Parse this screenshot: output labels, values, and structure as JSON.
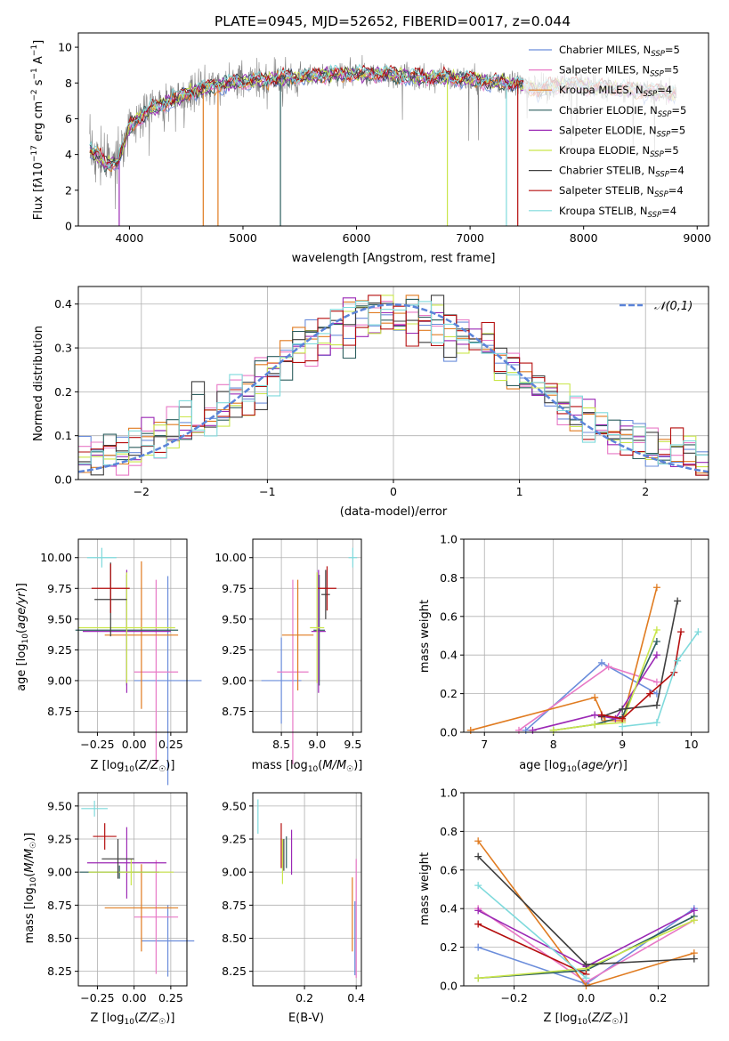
{
  "figure": {
    "title": "PLATE=0945, MJD=52652, FIBERID=0017, z=0.044"
  },
  "colors": {
    "chabrier_miles": "#6b8ddb",
    "salpeter_miles": "#e879c6",
    "kroupa_miles": "#e07b20",
    "chabrier_elodie": "#2d5f5f",
    "salpeter_elodie": "#9b29b5",
    "kroupa_elodie": "#c9e64a",
    "chabrier_stelib": "#3f3f3f",
    "salpeter_stelib": "#b50e0e",
    "kroupa_stelib": "#7fdadc",
    "data": "#808080",
    "normal": "#5b84d9"
  },
  "chart_data": [
    {
      "id": "spectrum",
      "type": "line",
      "title": "PLATE=0945, MJD=52652, FIBERID=0017, z=0.044",
      "xlabel": "wavelength [Angstrom, rest frame]",
      "ylabel": "Flux [f_λ 10^-17 erg cm^-2 s^-1 A^-1]",
      "xlim": [
        3550,
        9100
      ],
      "ylim": [
        0,
        10.8
      ],
      "xticks": [
        4000,
        5000,
        6000,
        7000,
        8000,
        9000
      ],
      "yticks": [
        0,
        2,
        4,
        6,
        8,
        10
      ],
      "legend_position": "right",
      "legend": [
        "Chabrier MILES, N_SSP=5",
        "Salpeter MILES, N_SSP=5",
        "Kroupa MILES, N_SSP=4",
        "Chabrier ELODIE, N_SSP=5",
        "Salpeter ELODIE, N_SSP=5",
        "Kroupa ELODIE, N_SSP=5",
        "Chabrier STELIB, N_SSP=4",
        "Salpeter STELIB, N_SSP=4",
        "Kroupa STELIB, N_SSP=4"
      ],
      "continuum_x": [
        3650,
        3700,
        3800,
        3900,
        4000,
        4100,
        4200,
        4300,
        4400,
        4500,
        4600,
        4700,
        4800,
        4900,
        5000,
        5200,
        5400,
        5600,
        5800,
        6000,
        6200,
        6400,
        6600,
        6800,
        7000,
        7200,
        7400,
        7600,
        7800,
        8000,
        8200,
        8400,
        8600,
        8800
      ],
      "continuum_y": [
        4.3,
        4.0,
        3.4,
        3.6,
        5.6,
        6.1,
        6.6,
        6.8,
        7.1,
        7.4,
        7.6,
        7.8,
        7.9,
        8.0,
        8.1,
        8.2,
        8.3,
        8.4,
        8.5,
        8.5,
        8.5,
        8.4,
        8.3,
        8.3,
        8.2,
        8.0,
        8.0,
        7.6,
        7.9,
        7.8,
        7.7,
        7.6,
        7.5,
        7.4
      ]
    },
    {
      "id": "residuals",
      "type": "area",
      "xlabel": "(data-model)/error",
      "ylabel": "Normed distribution",
      "xlim": [
        -2.5,
        2.5
      ],
      "ylim": [
        0,
        0.44
      ],
      "xticks": [
        -2,
        -1,
        0,
        1,
        2
      ],
      "yticks": [
        0.0,
        0.1,
        0.2,
        0.3,
        0.4
      ],
      "legend_position": "top-right",
      "normal_label": "𝒩(0,1)",
      "bins": 50
    },
    {
      "id": "age_vs_z",
      "type": "scatter",
      "xlabel": "Z [log10(Z/Z☉)]",
      "ylabel": "age  [log10(age/yr)]",
      "xlim": [
        -0.38,
        0.36
      ],
      "ylim": [
        8.58,
        10.15
      ],
      "xticks": [
        -0.25,
        0.0,
        0.25
      ],
      "yticks": [
        8.75,
        9.0,
        9.25,
        9.5,
        9.75,
        10.0
      ],
      "points": [
        {
          "x": 0.23,
          "y": 9.0,
          "xe": 0.23,
          "ye": 0.85,
          "c": "chabrier_miles"
        },
        {
          "x": 0.15,
          "y": 9.07,
          "xe": 0.15,
          "ye": 0.75,
          "c": "salpeter_miles"
        },
        {
          "x": 0.05,
          "y": 9.37,
          "xe": 0.25,
          "ye": 0.6,
          "c": "kroupa_miles"
        },
        {
          "x": -0.05,
          "y": 9.41,
          "xe": 0.35,
          "ye": 0.45,
          "c": "chabrier_elodie"
        },
        {
          "x": -0.05,
          "y": 9.4,
          "xe": 0.3,
          "ye": 0.5,
          "c": "salpeter_elodie"
        },
        {
          "x": -0.05,
          "y": 9.43,
          "xe": 0.33,
          "ye": 0.45,
          "c": "kroupa_elodie"
        },
        {
          "x": -0.16,
          "y": 9.66,
          "xe": 0.11,
          "ye": 0.3,
          "c": "chabrier_stelib"
        },
        {
          "x": -0.16,
          "y": 9.75,
          "xe": 0.13,
          "ye": 0.2,
          "c": "salpeter_stelib"
        },
        {
          "x": -0.22,
          "y": 10.0,
          "xe": 0.1,
          "ye": 0.08,
          "c": "kroupa_stelib"
        }
      ]
    },
    {
      "id": "age_vs_mass",
      "type": "scatter",
      "xlabel": "mass [log10(M/M☉)]",
      "ylabel": "",
      "xlim": [
        8.1,
        9.62
      ],
      "ylim": [
        8.58,
        10.15
      ],
      "xticks": [
        8.5,
        9.0,
        9.5
      ],
      "yticks": [
        8.75,
        9.0,
        9.25,
        9.5,
        9.75,
        10.0
      ],
      "points": [
        {
          "x": 8.5,
          "y": 9.0,
          "xe": 0.28,
          "ye": 0.35,
          "c": "chabrier_miles"
        },
        {
          "x": 8.66,
          "y": 9.07,
          "xe": 0.22,
          "ye": 0.75,
          "c": "salpeter_miles"
        },
        {
          "x": 8.73,
          "y": 9.37,
          "xe": 0.22,
          "ye": 0.45,
          "c": "kroupa_miles"
        },
        {
          "x": 9.03,
          "y": 9.41,
          "xe": 0.08,
          "ye": 0.45,
          "c": "chabrier_elodie"
        },
        {
          "x": 9.02,
          "y": 9.4,
          "xe": 0.1,
          "ye": 0.5,
          "c": "salpeter_elodie"
        },
        {
          "x": 9.0,
          "y": 9.43,
          "xe": 0.1,
          "ye": 0.45,
          "c": "kroupa_elodie"
        },
        {
          "x": 9.12,
          "y": 9.7,
          "xe": 0.06,
          "ye": 0.2,
          "c": "chabrier_stelib"
        },
        {
          "x": 9.14,
          "y": 9.75,
          "xe": 0.13,
          "ye": 0.18,
          "c": "salpeter_stelib"
        },
        {
          "x": 9.5,
          "y": 10.0,
          "xe": 0.06,
          "ye": 0.08,
          "c": "kroupa_stelib"
        }
      ]
    },
    {
      "id": "weight_vs_age",
      "type": "line",
      "xlabel": "age  [log10(age/yr)]",
      "ylabel": "mass weight",
      "xlim": [
        6.7,
        10.25
      ],
      "ylim": [
        0,
        1.0
      ],
      "xticks": [
        7,
        8,
        9,
        10
      ],
      "yticks": [
        0.0,
        0.2,
        0.4,
        0.6,
        0.8,
        1.0
      ],
      "series": [
        {
          "c": "chabrier_miles",
          "x": [
            7.6,
            8.7,
            9.5
          ],
          "y": [
            0.01,
            0.36,
            0.2
          ]
        },
        {
          "c": "salpeter_miles",
          "x": [
            7.5,
            8.8,
            9.5
          ],
          "y": [
            0.01,
            0.34,
            0.26
          ]
        },
        {
          "c": "kroupa_miles",
          "x": [
            6.8,
            8.6,
            8.75,
            9.0,
            9.5
          ],
          "y": [
            0.01,
            0.18,
            0.06,
            0.06,
            0.75
          ]
        },
        {
          "c": "chabrier_elodie",
          "x": [
            8.0,
            8.6,
            9.0,
            9.5
          ],
          "y": [
            0.01,
            0.04,
            0.08,
            0.47
          ]
        },
        {
          "c": "salpeter_elodie",
          "x": [
            7.7,
            8.6,
            8.9,
            9.5
          ],
          "y": [
            0.01,
            0.09,
            0.07,
            0.4
          ]
        },
        {
          "c": "kroupa_elodie",
          "x": [
            8.0,
            8.6,
            9.0,
            9.5
          ],
          "y": [
            0.01,
            0.04,
            0.05,
            0.53
          ]
        },
        {
          "c": "chabrier_stelib",
          "x": [
            8.7,
            9.0,
            9.5,
            9.8
          ],
          "y": [
            0.08,
            0.12,
            0.14,
            0.68
          ]
        },
        {
          "c": "salpeter_stelib",
          "x": [
            8.7,
            9.0,
            9.4,
            9.75,
            9.85
          ],
          "y": [
            0.09,
            0.07,
            0.2,
            0.31,
            0.52
          ]
        },
        {
          "c": "kroupa_stelib",
          "x": [
            9.0,
            9.5,
            9.8,
            10.1
          ],
          "y": [
            0.03,
            0.05,
            0.37,
            0.52
          ]
        }
      ]
    },
    {
      "id": "mass_vs_z",
      "type": "scatter",
      "xlabel": "Z [log10(Z/Z☉)]",
      "ylabel": "mass [log10(M/M☉)]",
      "xlim": [
        -0.38,
        0.36
      ],
      "ylim": [
        8.14,
        9.6
      ],
      "xticks": [
        -0.25,
        0.0,
        0.25
      ],
      "yticks": [
        8.25,
        8.5,
        8.75,
        9.0,
        9.25,
        9.5
      ],
      "points": [
        {
          "x": 0.23,
          "y": 8.48,
          "xe": 0.18,
          "ye": 0.27,
          "c": "chabrier_miles"
        },
        {
          "x": 0.15,
          "y": 8.66,
          "xe": 0.15,
          "ye": 0.43,
          "c": "salpeter_miles"
        },
        {
          "x": 0.05,
          "y": 8.73,
          "xe": 0.25,
          "ye": 0.33,
          "c": "kroupa_miles"
        },
        {
          "x": -0.1,
          "y": 9.0,
          "xe": 0.27,
          "ye": 0.05,
          "c": "chabrier_elodie"
        },
        {
          "x": -0.05,
          "y": 9.07,
          "xe": 0.27,
          "ye": 0.27,
          "c": "salpeter_elodie"
        },
        {
          "x": -0.02,
          "y": 9.0,
          "xe": 0.29,
          "ye": 0.1,
          "c": "kroupa_elodie"
        },
        {
          "x": -0.11,
          "y": 9.1,
          "xe": 0.11,
          "ye": 0.15,
          "c": "chabrier_stelib"
        },
        {
          "x": -0.2,
          "y": 9.27,
          "xe": 0.08,
          "ye": 0.1,
          "c": "salpeter_stelib"
        },
        {
          "x": -0.27,
          "y": 9.48,
          "xe": 0.09,
          "ye": 0.06,
          "c": "kroupa_stelib"
        }
      ]
    },
    {
      "id": "mass_vs_ebv",
      "type": "scatter",
      "xlabel": "E(B-V)",
      "ylabel": "",
      "xlim": [
        0.0,
        0.42
      ],
      "ylim": [
        8.14,
        9.6
      ],
      "xticks": [
        0.2,
        0.4
      ],
      "yticks": [
        8.25,
        8.5,
        8.75,
        9.0,
        9.25,
        9.5
      ],
      "points": [
        {
          "x": 0.395,
          "y": 8.5,
          "xe": 0.0,
          "ye": 0.28,
          "c": "chabrier_miles"
        },
        {
          "x": 0.4,
          "y": 8.65,
          "xe": 0.0,
          "ye": 0.45,
          "c": "salpeter_miles"
        },
        {
          "x": 0.385,
          "y": 8.68,
          "xe": 0.0,
          "ye": 0.28,
          "c": "kroupa_miles"
        },
        {
          "x": 0.13,
          "y": 9.15,
          "xe": 0.0,
          "ye": 0.12,
          "c": "chabrier_elodie"
        },
        {
          "x": 0.15,
          "y": 9.15,
          "xe": 0.0,
          "ye": 0.17,
          "c": "salpeter_elodie"
        },
        {
          "x": 0.115,
          "y": 9.08,
          "xe": 0.0,
          "ye": 0.17,
          "c": "kroupa_elodie"
        },
        {
          "x": 0.12,
          "y": 9.13,
          "xe": 0.0,
          "ye": 0.12,
          "c": "chabrier_stelib"
        },
        {
          "x": 0.11,
          "y": 9.2,
          "xe": 0.0,
          "ye": 0.17,
          "c": "salpeter_stelib"
        },
        {
          "x": 0.02,
          "y": 9.42,
          "xe": 0.0,
          "ye": 0.13,
          "c": "kroupa_stelib"
        }
      ]
    },
    {
      "id": "weight_vs_z",
      "type": "line",
      "xlabel": "Z [log10(Z/Z☉)]",
      "ylabel": "mass weight",
      "xlim": [
        -0.34,
        0.34
      ],
      "ylim": [
        0,
        1.0
      ],
      "xticks": [
        -0.2,
        0.0,
        0.2
      ],
      "yticks": [
        0.0,
        0.2,
        0.4,
        0.6,
        0.8,
        1.0
      ],
      "series": [
        {
          "c": "chabrier_miles",
          "x": [
            -0.3,
            0.0,
            0.3
          ],
          "y": [
            0.2,
            0.01,
            0.4
          ]
        },
        {
          "c": "salpeter_miles",
          "x": [
            -0.3,
            0.0,
            0.3
          ],
          "y": [
            0.4,
            0.02,
            0.34
          ]
        },
        {
          "c": "kroupa_miles",
          "x": [
            -0.3,
            0.0,
            0.3
          ],
          "y": [
            0.75,
            0.0,
            0.17
          ]
        },
        {
          "c": "chabrier_elodie",
          "x": [
            -0.3,
            0.0,
            0.3
          ],
          "y": [
            0.04,
            0.08,
            0.36
          ]
        },
        {
          "c": "salpeter_elodie",
          "x": [
            -0.3,
            0.0,
            0.3
          ],
          "y": [
            0.39,
            0.1,
            0.39
          ]
        },
        {
          "c": "kroupa_elodie",
          "x": [
            -0.3,
            0.0,
            0.3
          ],
          "y": [
            0.04,
            0.09,
            0.34
          ]
        },
        {
          "c": "chabrier_stelib",
          "x": [
            -0.3,
            0.0,
            0.3
          ],
          "y": [
            0.67,
            0.11,
            0.14
          ]
        },
        {
          "c": "salpeter_stelib",
          "x": [
            -0.3,
            0.0
          ],
          "y": [
            0.32,
            0.06
          ]
        },
        {
          "c": "kroupa_stelib",
          "x": [
            -0.3,
            0.0
          ],
          "y": [
            0.52,
            0.04
          ]
        }
      ]
    }
  ]
}
